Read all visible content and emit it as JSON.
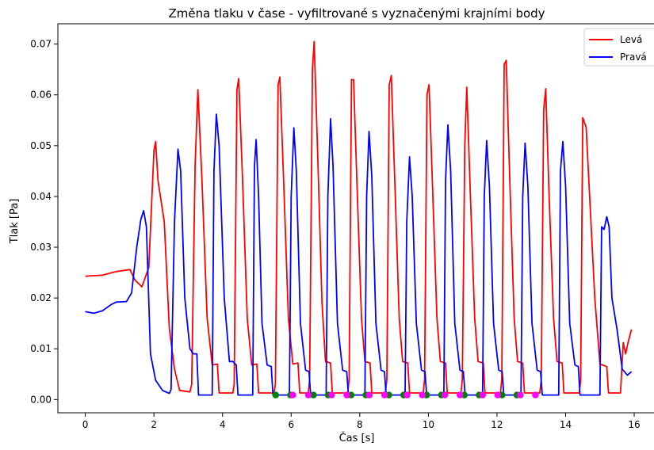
{
  "chart_data": {
    "type": "line",
    "title": "Změna tlaku v čase - vyfiltrované s vyznačenými krajními body",
    "xlabel": "Čas [s]",
    "ylabel": "Tlak [Pa]",
    "xlim": [
      -0.8,
      16.6
    ],
    "ylim": [
      -0.0026,
      0.074
    ],
    "xticks": [
      0,
      2,
      4,
      6,
      8,
      10,
      12,
      14,
      16
    ],
    "xtick_labels": [
      "0",
      "2",
      "4",
      "6",
      "8",
      "10",
      "12",
      "14",
      "16"
    ],
    "yticks": [
      0.0,
      0.01,
      0.02,
      0.03,
      0.04,
      0.05,
      0.06,
      0.07
    ],
    "ytick_labels": [
      "0.00",
      "0.01",
      "0.02",
      "0.03",
      "0.04",
      "0.05",
      "0.06",
      "0.07"
    ],
    "grid": false,
    "legend_position": "top-right",
    "series": [
      {
        "name": "Levá",
        "color": "#ff0000",
        "points": [
          [
            0,
            0.0243
          ],
          [
            0.5,
            0.0245
          ],
          [
            0.9,
            0.0252
          ],
          [
            1.3,
            0.0256
          ],
          [
            1.45,
            0.0235
          ],
          [
            1.65,
            0.0222
          ],
          [
            1.85,
            0.026
          ],
          [
            2.0,
            0.049
          ],
          [
            2.05,
            0.0508
          ],
          [
            2.12,
            0.043
          ],
          [
            2.3,
            0.035
          ],
          [
            2.45,
            0.014
          ],
          [
            2.6,
            0.006
          ],
          [
            2.75,
            0.0018
          ],
          [
            3.05,
            0.0015
          ],
          [
            3.1,
            0.003
          ],
          [
            3.2,
            0.046
          ],
          [
            3.28,
            0.061
          ],
          [
            3.4,
            0.043
          ],
          [
            3.55,
            0.016
          ],
          [
            3.7,
            0.0068
          ],
          [
            3.85,
            0.007
          ],
          [
            3.9,
            0.0013
          ],
          [
            4.3,
            0.0013
          ],
          [
            4.34,
            0.003
          ],
          [
            4.42,
            0.061
          ],
          [
            4.47,
            0.0632
          ],
          [
            4.58,
            0.044
          ],
          [
            4.72,
            0.016
          ],
          [
            4.85,
            0.0068
          ],
          [
            5.0,
            0.007
          ],
          [
            5.05,
            0.0013
          ],
          [
            5.5,
            0.0013
          ],
          [
            5.54,
            0.003
          ],
          [
            5.62,
            0.062
          ],
          [
            5.67,
            0.0635
          ],
          [
            5.78,
            0.043
          ],
          [
            5.92,
            0.016
          ],
          [
            6.05,
            0.007
          ],
          [
            6.2,
            0.0072
          ],
          [
            6.25,
            0.0013
          ],
          [
            6.5,
            0.0013
          ],
          [
            6.54,
            0.004
          ],
          [
            6.62,
            0.065
          ],
          [
            6.67,
            0.0705
          ],
          [
            6.78,
            0.047
          ],
          [
            6.9,
            0.019
          ],
          [
            7.0,
            0.0075
          ],
          [
            7.15,
            0.0072
          ],
          [
            7.2,
            0.0013
          ],
          [
            7.65,
            0.0013
          ],
          [
            7.69,
            0.004
          ],
          [
            7.76,
            0.063
          ],
          [
            7.82,
            0.063
          ],
          [
            7.92,
            0.042
          ],
          [
            8.05,
            0.016
          ],
          [
            8.15,
            0.0075
          ],
          [
            8.3,
            0.0072
          ],
          [
            8.35,
            0.0013
          ],
          [
            8.75,
            0.0013
          ],
          [
            8.79,
            0.004
          ],
          [
            8.86,
            0.062
          ],
          [
            8.92,
            0.0638
          ],
          [
            9.02,
            0.043
          ],
          [
            9.15,
            0.016
          ],
          [
            9.25,
            0.0075
          ],
          [
            9.4,
            0.0072
          ],
          [
            9.45,
            0.0013
          ],
          [
            9.85,
            0.0013
          ],
          [
            9.89,
            0.004
          ],
          [
            9.96,
            0.06
          ],
          [
            10.02,
            0.062
          ],
          [
            10.12,
            0.042
          ],
          [
            10.25,
            0.016
          ],
          [
            10.35,
            0.0075
          ],
          [
            10.5,
            0.0072
          ],
          [
            10.55,
            0.0013
          ],
          [
            10.95,
            0.0013
          ],
          [
            10.99,
            0.004
          ],
          [
            11.06,
            0.05
          ],
          [
            11.12,
            0.0615
          ],
          [
            11.22,
            0.041
          ],
          [
            11.35,
            0.016
          ],
          [
            11.45,
            0.0075
          ],
          [
            11.6,
            0.0072
          ],
          [
            11.65,
            0.0013
          ],
          [
            12.1,
            0.0013
          ],
          [
            12.14,
            0.004
          ],
          [
            12.21,
            0.066
          ],
          [
            12.27,
            0.0668
          ],
          [
            12.37,
            0.044
          ],
          [
            12.5,
            0.016
          ],
          [
            12.6,
            0.0075
          ],
          [
            12.75,
            0.0072
          ],
          [
            12.8,
            0.0013
          ],
          [
            13.25,
            0.0013
          ],
          [
            13.29,
            0.004
          ],
          [
            13.36,
            0.057
          ],
          [
            13.42,
            0.0612
          ],
          [
            13.52,
            0.04
          ],
          [
            13.65,
            0.016
          ],
          [
            13.75,
            0.0075
          ],
          [
            13.9,
            0.0072
          ],
          [
            13.95,
            0.0013
          ],
          [
            14.4,
            0.0013
          ],
          [
            14.44,
            0.004
          ],
          [
            14.5,
            0.0555
          ],
          [
            14.6,
            0.0536
          ],
          [
            14.7,
            0.04
          ],
          [
            14.85,
            0.02
          ],
          [
            15.0,
            0.007
          ],
          [
            15.2,
            0.0065
          ],
          [
            15.25,
            0.0013
          ],
          [
            15.6,
            0.0013
          ],
          [
            15.68,
            0.0112
          ],
          [
            15.75,
            0.009
          ],
          [
            15.82,
            0.0112
          ],
          [
            15.92,
            0.0138
          ]
        ]
      },
      {
        "name": "Pravá",
        "color": "#0000ff",
        "points": [
          [
            0,
            0.0173
          ],
          [
            0.25,
            0.017
          ],
          [
            0.5,
            0.0175
          ],
          [
            0.75,
            0.0187
          ],
          [
            0.9,
            0.0192
          ],
          [
            1.2,
            0.0193
          ],
          [
            1.35,
            0.021
          ],
          [
            1.5,
            0.03
          ],
          [
            1.62,
            0.0355
          ],
          [
            1.7,
            0.0372
          ],
          [
            1.78,
            0.034
          ],
          [
            1.9,
            0.009
          ],
          [
            2.05,
            0.0038
          ],
          [
            2.25,
            0.0018
          ],
          [
            2.45,
            0.0012
          ],
          [
            2.5,
            0.002
          ],
          [
            2.6,
            0.035
          ],
          [
            2.7,
            0.0493
          ],
          [
            2.78,
            0.045
          ],
          [
            2.9,
            0.02
          ],
          [
            3.05,
            0.01
          ],
          [
            3.15,
            0.009
          ],
          [
            3.25,
            0.009
          ],
          [
            3.3,
            0.0009
          ],
          [
            3.7,
            0.0009
          ],
          [
            3.75,
            0.045
          ],
          [
            3.82,
            0.0562
          ],
          [
            3.9,
            0.05
          ],
          [
            4.05,
            0.02
          ],
          [
            4.2,
            0.0075
          ],
          [
            4.3,
            0.0075
          ],
          [
            4.4,
            0.0068
          ],
          [
            4.45,
            0.0009
          ],
          [
            4.88,
            0.0009
          ],
          [
            4.93,
            0.046
          ],
          [
            4.98,
            0.0512
          ],
          [
            5.05,
            0.04
          ],
          [
            5.15,
            0.015
          ],
          [
            5.3,
            0.0068
          ],
          [
            5.42,
            0.0065
          ],
          [
            5.47,
            0.0009
          ],
          [
            5.95,
            0.0009
          ],
          [
            6.0,
            0.04
          ],
          [
            6.08,
            0.0535
          ],
          [
            6.15,
            0.045
          ],
          [
            6.27,
            0.015
          ],
          [
            6.42,
            0.0058
          ],
          [
            6.52,
            0.0055
          ],
          [
            6.57,
            0.0009
          ],
          [
            7.02,
            0.0009
          ],
          [
            7.07,
            0.04
          ],
          [
            7.15,
            0.0553
          ],
          [
            7.22,
            0.046
          ],
          [
            7.35,
            0.015
          ],
          [
            7.5,
            0.0058
          ],
          [
            7.62,
            0.0055
          ],
          [
            7.67,
            0.0009
          ],
          [
            8.15,
            0.0009
          ],
          [
            8.2,
            0.04
          ],
          [
            8.27,
            0.0528
          ],
          [
            8.35,
            0.044
          ],
          [
            8.47,
            0.015
          ],
          [
            8.62,
            0.0058
          ],
          [
            8.72,
            0.0055
          ],
          [
            8.77,
            0.0009
          ],
          [
            9.32,
            0.0009
          ],
          [
            9.37,
            0.035
          ],
          [
            9.45,
            0.0478
          ],
          [
            9.53,
            0.04
          ],
          [
            9.65,
            0.015
          ],
          [
            9.8,
            0.0058
          ],
          [
            9.9,
            0.0055
          ],
          [
            9.95,
            0.0009
          ],
          [
            10.45,
            0.0009
          ],
          [
            10.5,
            0.043
          ],
          [
            10.57,
            0.0541
          ],
          [
            10.65,
            0.045
          ],
          [
            10.77,
            0.015
          ],
          [
            10.92,
            0.0058
          ],
          [
            11.02,
            0.0055
          ],
          [
            11.07,
            0.0009
          ],
          [
            11.58,
            0.0009
          ],
          [
            11.63,
            0.04
          ],
          [
            11.7,
            0.051
          ],
          [
            11.78,
            0.042
          ],
          [
            11.9,
            0.015
          ],
          [
            12.05,
            0.0058
          ],
          [
            12.15,
            0.0055
          ],
          [
            12.2,
            0.0009
          ],
          [
            12.7,
            0.0009
          ],
          [
            12.75,
            0.04
          ],
          [
            12.82,
            0.0505
          ],
          [
            12.9,
            0.042
          ],
          [
            13.02,
            0.015
          ],
          [
            13.17,
            0.0058
          ],
          [
            13.27,
            0.0055
          ],
          [
            13.32,
            0.0009
          ],
          [
            13.8,
            0.0009
          ],
          [
            13.85,
            0.045
          ],
          [
            13.92,
            0.0508
          ],
          [
            14.0,
            0.042
          ],
          [
            14.12,
            0.015
          ],
          [
            14.27,
            0.0068
          ],
          [
            14.37,
            0.0065
          ],
          [
            14.42,
            0.0009
          ],
          [
            15.0,
            0.0009
          ],
          [
            15.05,
            0.034
          ],
          [
            15.12,
            0.0335
          ],
          [
            15.2,
            0.036
          ],
          [
            15.27,
            0.034
          ],
          [
            15.35,
            0.02
          ],
          [
            15.5,
            0.0138
          ],
          [
            15.65,
            0.006
          ],
          [
            15.8,
            0.0048
          ],
          [
            15.92,
            0.0055
          ]
        ]
      }
    ],
    "markers": [
      {
        "color": "#008000",
        "x": [
          5.55,
          5.98,
          6.65,
          7.08,
          7.75,
          8.18,
          8.85,
          9.28,
          9.95,
          10.38,
          11.05,
          11.48,
          12.15,
          12.58
        ]
      },
      {
        "color": "#ff00ff",
        "x": [
          6.05,
          6.5,
          7.18,
          7.62,
          8.28,
          8.72,
          9.38,
          9.82,
          10.48,
          10.92,
          11.58,
          12.02,
          12.68,
          13.12
        ]
      }
    ],
    "marker_y": 0.0009
  }
}
